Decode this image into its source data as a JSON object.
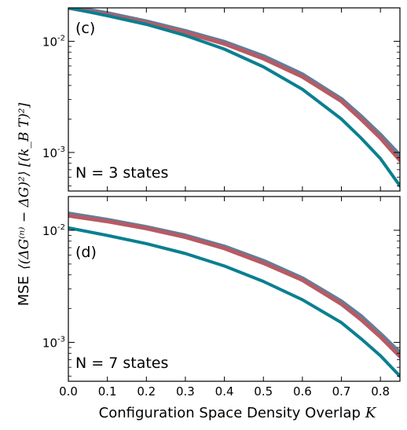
{
  "chart_data": [
    {
      "type": "line",
      "panel_label": "(c)",
      "annotation": "N = 3 states",
      "xlim": [
        0.0,
        0.85
      ],
      "ylim": [
        0.00045,
        0.02
      ],
      "yscale": "log",
      "y_ticks": [
        {
          "value": 0.001,
          "mantissa": "10",
          "exponent": "-3"
        },
        {
          "value": 0.01,
          "mantissa": "10",
          "exponent": "-2"
        }
      ],
      "series": [
        {
          "color": "#5f7f9b",
          "width": 6,
          "x": [
            0,
            0.1,
            0.2,
            0.3,
            0.4,
            0.5,
            0.6,
            0.7,
            0.75,
            0.8,
            0.85
          ],
          "y": [
            0.0205,
            0.0178,
            0.015,
            0.0123,
            0.0098,
            0.0073,
            0.005,
            0.003,
            0.0021,
            0.00143,
            0.00093
          ]
        },
        {
          "color": "#b85a63",
          "width": 5,
          "x": [
            0,
            0.1,
            0.2,
            0.3,
            0.4,
            0.5,
            0.6,
            0.7,
            0.75,
            0.8,
            0.85
          ],
          "y": [
            0.02,
            0.0174,
            0.0147,
            0.012,
            0.0095,
            0.007,
            0.0048,
            0.0029,
            0.002,
            0.00135,
            0.00085
          ]
        },
        {
          "color": "#0a7f91",
          "width": 4,
          "x": [
            0,
            0.1,
            0.2,
            0.3,
            0.4,
            0.5,
            0.6,
            0.7,
            0.75,
            0.8,
            0.85
          ],
          "y": [
            0.02,
            0.017,
            0.0142,
            0.0113,
            0.0085,
            0.0059,
            0.0037,
            0.002,
            0.00135,
            0.00088,
            0.0005
          ]
        }
      ]
    },
    {
      "type": "line",
      "panel_label": "(d)",
      "annotation": "N = 7 states",
      "xlim": [
        0.0,
        0.85
      ],
      "ylim": [
        0.00045,
        0.02
      ],
      "yscale": "log",
      "y_ticks": [
        {
          "value": 0.001,
          "mantissa": "10",
          "exponent": "-3"
        },
        {
          "value": 0.01,
          "mantissa": "10",
          "exponent": "-2"
        }
      ],
      "series": [
        {
          "color": "#5f7f9b",
          "width": 6,
          "x": [
            0,
            0.1,
            0.2,
            0.3,
            0.4,
            0.5,
            0.6,
            0.7,
            0.75,
            0.8,
            0.85
          ],
          "y": [
            0.014,
            0.0123,
            0.0106,
            0.0089,
            0.0071,
            0.0053,
            0.0037,
            0.0023,
            0.0017,
            0.00118,
            0.0008
          ]
        },
        {
          "color": "#b85a63",
          "width": 5,
          "x": [
            0,
            0.1,
            0.2,
            0.3,
            0.4,
            0.5,
            0.6,
            0.7,
            0.75,
            0.8,
            0.85
          ],
          "y": [
            0.0135,
            0.012,
            0.0104,
            0.0087,
            0.0069,
            0.0051,
            0.0036,
            0.0022,
            0.0016,
            0.00112,
            0.00075
          ]
        },
        {
          "color": "#0a7f91",
          "width": 4,
          "x": [
            0,
            0.1,
            0.2,
            0.3,
            0.4,
            0.5,
            0.6,
            0.7,
            0.75,
            0.8,
            0.85
          ],
          "y": [
            0.0105,
            0.009,
            0.0076,
            0.0062,
            0.0048,
            0.0035,
            0.0024,
            0.0015,
            0.00108,
            0.00076,
            0.0005
          ]
        }
      ]
    }
  ],
  "x_ticks": [
    "0.0",
    "0.1",
    "0.2",
    "0.3",
    "0.4",
    "0.5",
    "0.6",
    "0.7",
    "0.8"
  ],
  "x_tick_values": [
    0.0,
    0.1,
    0.2,
    0.3,
    0.4,
    0.5,
    0.6,
    0.7,
    0.8
  ],
  "xlabel": "Configuration Space Density Overlap",
  "xlabel_symbol": "K",
  "ylabel_prefix": "MSE",
  "ylabel_math": "⟨(ΔG⁽ⁿ⁾ − ΔG)²⟩ [(k_B T)²]"
}
